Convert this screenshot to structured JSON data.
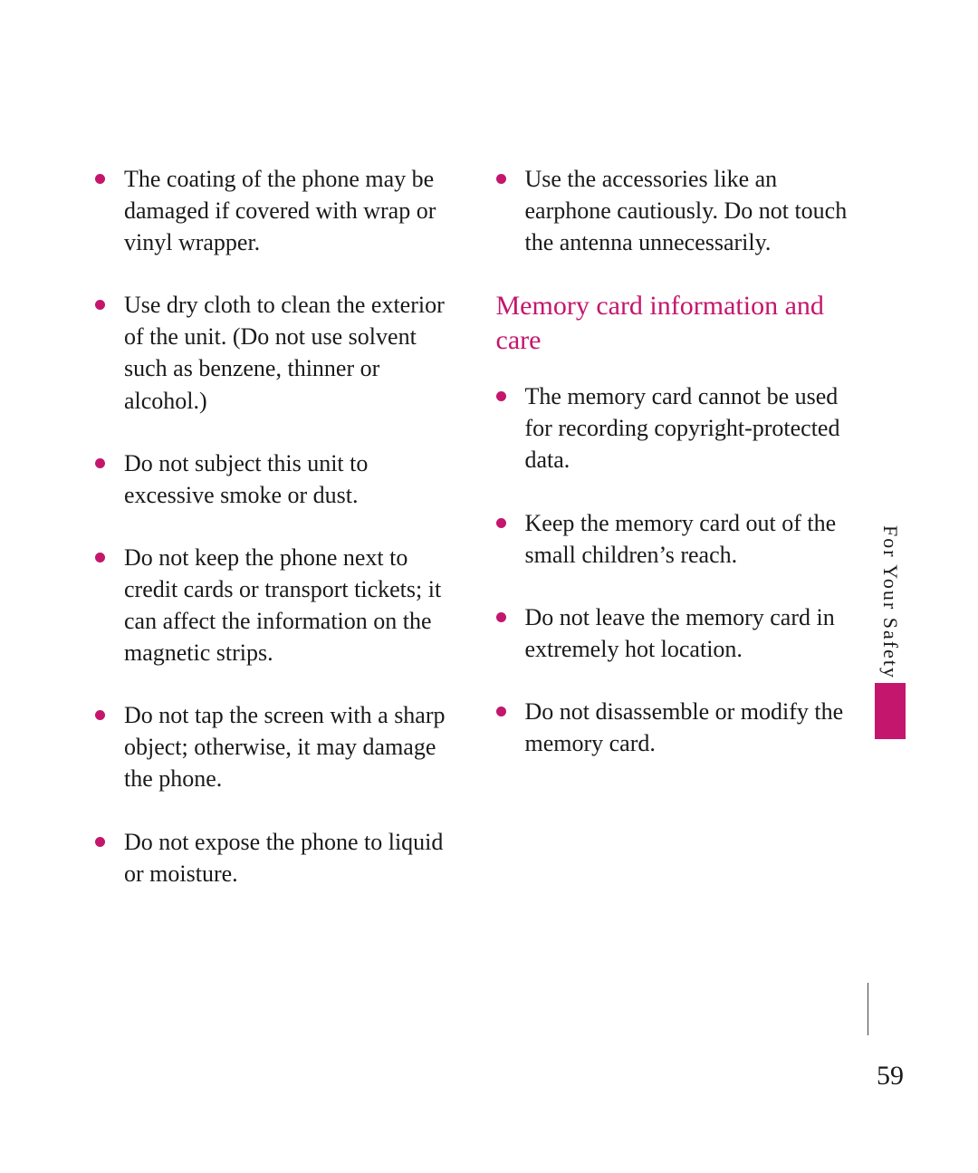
{
  "accent_color": "#c4166c",
  "text_color": "#1a1a1a",
  "background_color": "#ffffff",
  "page_number": "59",
  "side_tab": {
    "label": "For Your Safety"
  },
  "left_column": {
    "items": [
      "The coating of the phone may be damaged if covered with wrap or vinyl wrapper.",
      "Use dry cloth to clean the exterior of the unit. (Do not use solvent such as benzene, thinner or alcohol.)",
      "Do not subject this unit to excessive smoke or dust.",
      "Do not keep the phone next to credit cards or transport tickets; it can affect the information on the magnetic strips.",
      "Do not tap the screen with a sharp object; otherwise, it may damage the phone.",
      "Do not expose the phone to liquid or moisture."
    ]
  },
  "right_column": {
    "top_items": [
      "Use the accessories like an earphone cautiously. Do not touch the antenna unnecessarily."
    ],
    "section_heading": "Memory card information and care",
    "section_items": [
      "The memory card cannot be used for recording copyright-protected data.",
      "Keep the memory card out of the small children’s reach.",
      "Do not leave the memory card in extremely hot location.",
      "Do not disassemble or modify the memory card."
    ]
  }
}
